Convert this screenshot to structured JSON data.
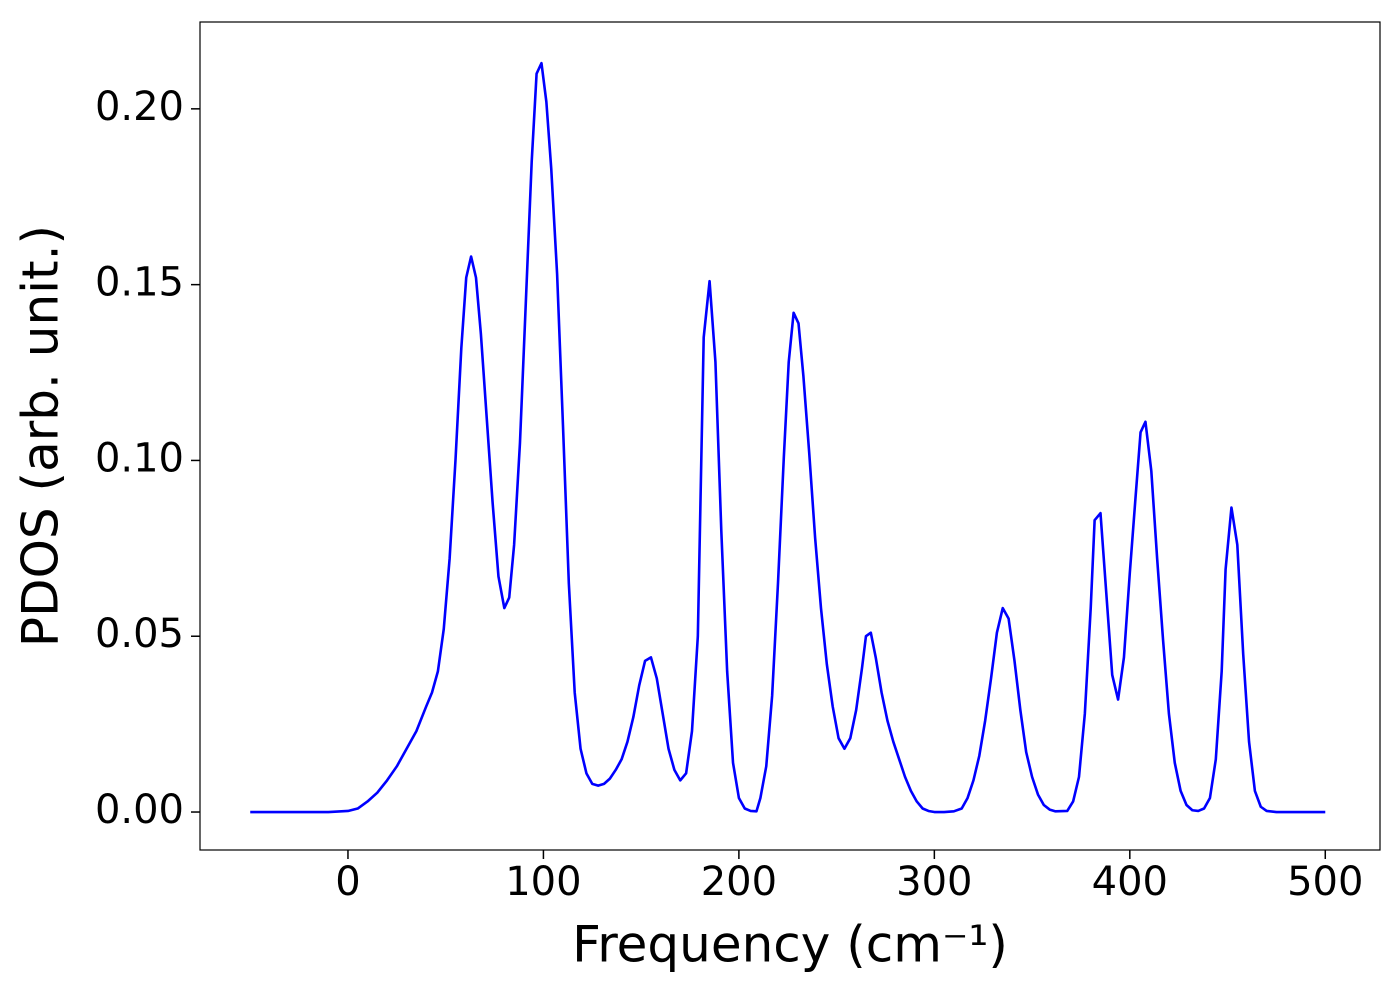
{
  "chart_data": {
    "type": "line",
    "xlabel": "Frequency (cm⁻¹)",
    "ylabel": "PDOS (arb. unit.)",
    "x": [
      -50,
      -40,
      -30,
      -20,
      -10,
      0,
      5,
      10,
      15,
      20,
      25,
      30,
      35,
      40,
      43,
      46,
      49,
      52,
      55,
      58,
      60.5,
      63,
      65.5,
      68,
      71,
      74,
      77,
      80,
      82.5,
      85,
      88,
      91,
      94,
      96.5,
      99,
      101.5,
      104,
      107,
      110,
      113,
      116,
      119,
      122,
      125,
      128,
      131,
      134,
      137,
      140,
      143,
      146,
      149,
      152,
      155,
      158,
      161,
      164,
      167,
      170,
      173,
      176,
      179,
      182,
      185,
      188,
      191,
      194,
      197,
      200,
      203,
      206,
      209,
      211,
      214,
      217,
      220,
      223,
      225.5,
      228,
      230.5,
      233,
      236,
      239,
      242,
      245,
      248,
      251,
      254,
      257,
      260,
      263,
      265,
      267.5,
      270,
      273,
      276,
      279,
      282,
      285,
      288,
      291,
      294,
      297,
      300,
      305,
      310,
      314,
      317,
      320,
      323,
      326,
      329,
      332,
      335,
      338,
      341,
      344,
      347,
      350,
      353,
      356,
      359,
      362,
      368,
      371,
      374,
      377,
      380,
      382,
      385,
      388,
      391,
      394,
      397,
      400,
      403,
      405.5,
      408,
      411,
      414,
      417,
      420,
      423,
      426,
      429,
      432,
      435,
      438,
      441,
      444,
      447,
      449,
      452,
      455,
      458,
      461,
      464,
      467,
      470,
      475,
      500
    ],
    "series": [
      {
        "name": "PDOS",
        "color": "#0000ff",
        "values": [
          0,
          0,
          0,
          0,
          0,
          0.0003,
          0.001,
          0.003,
          0.0055,
          0.009,
          0.013,
          0.018,
          0.023,
          0.03,
          0.034,
          0.04,
          0.052,
          0.072,
          0.1,
          0.132,
          0.152,
          0.158,
          0.152,
          0.136,
          0.112,
          0.088,
          0.067,
          0.058,
          0.061,
          0.076,
          0.105,
          0.145,
          0.185,
          0.21,
          0.213,
          0.202,
          0.183,
          0.153,
          0.11,
          0.065,
          0.034,
          0.018,
          0.011,
          0.008,
          0.0075,
          0.008,
          0.0095,
          0.012,
          0.015,
          0.02,
          0.027,
          0.036,
          0.043,
          0.044,
          0.038,
          0.028,
          0.018,
          0.012,
          0.009,
          0.011,
          0.023,
          0.05,
          0.135,
          0.151,
          0.128,
          0.08,
          0.04,
          0.014,
          0.004,
          0.001,
          0.0003,
          0.0002,
          0.004,
          0.013,
          0.033,
          0.065,
          0.101,
          0.128,
          0.142,
          0.139,
          0.124,
          0.102,
          0.078,
          0.058,
          0.042,
          0.03,
          0.021,
          0.018,
          0.021,
          0.029,
          0.041,
          0.05,
          0.051,
          0.044,
          0.034,
          0.026,
          0.02,
          0.015,
          0.01,
          0.006,
          0.003,
          0.001,
          0.0003,
          0,
          0,
          0.0002,
          0.001,
          0.004,
          0.009,
          0.016,
          0.026,
          0.038,
          0.051,
          0.058,
          0.055,
          0.043,
          0.029,
          0.017,
          0.01,
          0.005,
          0.002,
          0.0007,
          0.0002,
          0.0003,
          0.003,
          0.01,
          0.028,
          0.058,
          0.083,
          0.085,
          0.062,
          0.039,
          0.032,
          0.044,
          0.068,
          0.09,
          0.108,
          0.111,
          0.097,
          0.072,
          0.049,
          0.028,
          0.014,
          0.006,
          0.002,
          0.0005,
          0.0003,
          0.001,
          0.004,
          0.015,
          0.04,
          0.069,
          0.0866,
          0.076,
          0.045,
          0.02,
          0.006,
          0.0015,
          0.0003,
          0,
          0
        ]
      }
    ],
    "xlim": [
      -75.7,
      528
    ],
    "ylim": [
      -0.0108,
      0.2247
    ],
    "xticks": [
      0,
      100,
      200,
      300,
      400,
      500
    ],
    "yticks": [
      {
        "value": 0,
        "label": "0.00"
      },
      {
        "value": 0.05,
        "label": "0.05"
      },
      {
        "value": 0.1,
        "label": "0.10"
      },
      {
        "value": 0.15,
        "label": "0.15"
      },
      {
        "value": 0.2,
        "label": "0.20"
      }
    ],
    "grid": false
  }
}
